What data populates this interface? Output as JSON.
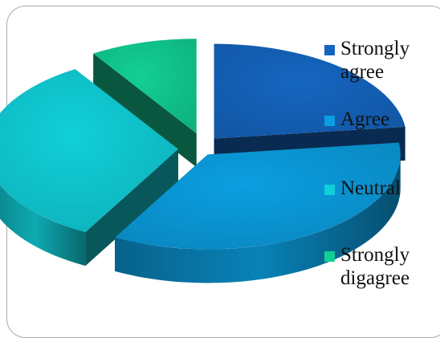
{
  "chart_data": {
    "type": "pie",
    "style": "3d-exploded",
    "title": "",
    "categories": [
      "Strongly agree",
      "Agree",
      "Neutral",
      "Strongly digagree"
    ],
    "values": [
      23,
      35,
      33,
      9
    ],
    "unit": "%",
    "colors": [
      "#1565c0",
      "#0b9ee0",
      "#10cfd8",
      "#12cf93"
    ],
    "legend": {
      "placement": "right",
      "labels": [
        "Strongly agree",
        "Agree",
        "Neutral",
        "Strongly digagree"
      ]
    }
  }
}
